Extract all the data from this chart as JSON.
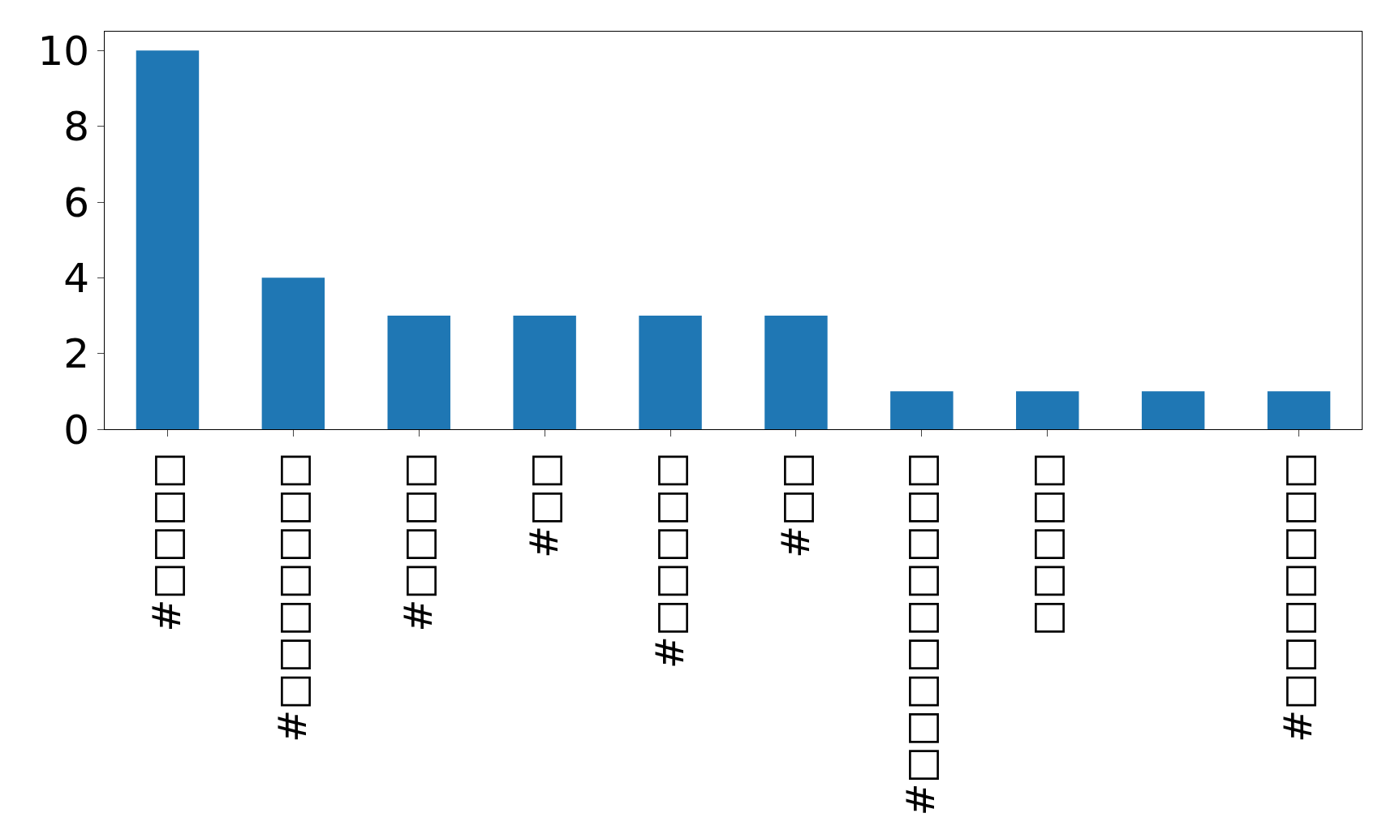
{
  "chart_data": {
    "type": "bar",
    "categories": [
      "#□□□□",
      "#□□□□□□□",
      "#□□□□",
      "#□□",
      "#□□□□□",
      "#□□",
      "#□□□□□□□□□",
      "□□□□□",
      null,
      "#□□□□□□□"
    ],
    "values": [
      10,
      4,
      3,
      3,
      3,
      3,
      1,
      1,
      1,
      1
    ],
    "color": "#1f77b4",
    "ylim": [
      0,
      10.5
    ],
    "yticks": [
      0,
      2,
      4,
      6,
      8,
      10
    ],
    "legend": false
  }
}
